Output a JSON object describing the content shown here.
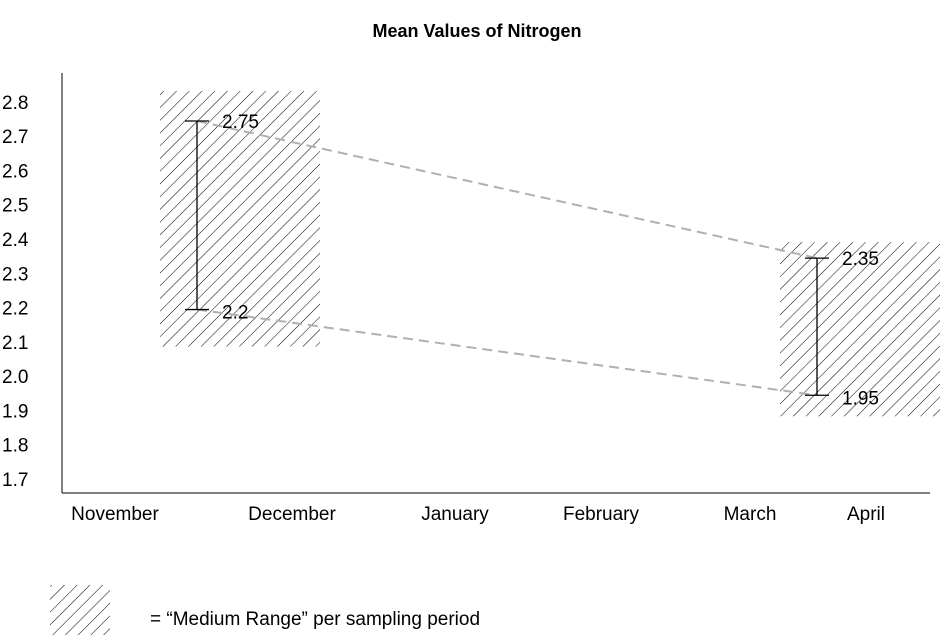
{
  "chart_data": {
    "type": "range",
    "title": "Mean Values of Nitrogen",
    "categories": [
      "November",
      "December",
      "January",
      "February",
      "March",
      "April"
    ],
    "ranges": [
      {
        "high": 2.75,
        "low": 2.2
      },
      {
        "high": 2.35,
        "low": 1.95
      }
    ],
    "line_color": "#b0b0b0",
    "ylim": [
      1.665,
      2.89
    ],
    "yticks": [
      1.7,
      1.8,
      1.9,
      {
        "value": 2,
        "label": "2.0"
      },
      2.1,
      2.2,
      2.3,
      2.4,
      2.5,
      2.6,
      2.7,
      2.8
    ],
    "legend": "= “Medium Range” per sampling period"
  }
}
